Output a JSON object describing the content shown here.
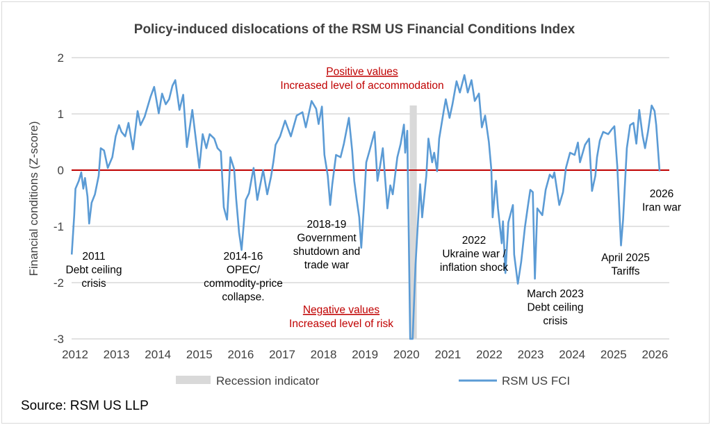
{
  "chart_data": {
    "type": "line",
    "title": "Policy-induced dislocations of the RSM US Financial Conditions Index",
    "xlabel": "",
    "ylabel": "Financial conditions (Z-score)",
    "xlim": [
      2012,
      2026
    ],
    "ylim": [
      -3,
      2
    ],
    "x_ticks": [
      "2012",
      "2013",
      "2014",
      "2015",
      "2016",
      "2017",
      "2018",
      "2019",
      "2020",
      "2021",
      "2022",
      "2023",
      "2024",
      "2025",
      "2026"
    ],
    "y_ticks": [
      "2",
      "1",
      "0",
      "-1",
      "-2",
      "-3"
    ],
    "grid": true,
    "legend_position": "bottom",
    "legend": [
      "Recession indicator",
      "RSM US FCI"
    ],
    "colors": {
      "fci": "#5b9bd5",
      "recession": "#d9d9d9",
      "zero_line": "#c00000",
      "accent": "#c00000"
    },
    "recession": {
      "name": "Recession indicator",
      "start": 2020.08,
      "end": 2020.25,
      "top": 1.15
    },
    "series": [
      {
        "name": "RSM US FCI",
        "x": [
          2011.92,
          2011.98,
          2012.01,
          2012.09,
          2012.15,
          2012.2,
          2012.24,
          2012.3,
          2012.34,
          2012.4,
          2012.48,
          2012.57,
          2012.62,
          2012.7,
          2012.79,
          2012.9,
          2012.98,
          2013.06,
          2013.12,
          2013.21,
          2013.29,
          2013.4,
          2013.51,
          2013.58,
          2013.68,
          2013.82,
          2013.91,
          2014.02,
          2014.1,
          2014.19,
          2014.27,
          2014.35,
          2014.42,
          2014.52,
          2014.61,
          2014.7,
          2014.83,
          2015.0,
          2015.08,
          2015.17,
          2015.25,
          2015.36,
          2015.44,
          2015.52,
          2015.59,
          2015.67,
          2015.75,
          2015.84,
          2015.89,
          2015.96,
          2016.02,
          2016.12,
          2016.2,
          2016.26,
          2016.31,
          2016.4,
          2016.54,
          2016.64,
          2016.73,
          2016.79,
          2016.84,
          2016.95,
          2017.07,
          2017.21,
          2017.35,
          2017.49,
          2017.57,
          2017.71,
          2017.82,
          2017.88,
          2017.96,
          2018.02,
          2018.1,
          2018.16,
          2018.21,
          2018.3,
          2018.41,
          2018.49,
          2018.61,
          2018.69,
          2018.74,
          2018.8,
          2018.86,
          2018.91,
          2018.97,
          2019.03,
          2019.11,
          2019.23,
          2019.3,
          2019.36,
          2019.43,
          2019.54,
          2019.61,
          2019.67,
          2019.78,
          2019.86,
          2019.94,
          2019.97,
          2020.02,
          2020.09,
          2020.15,
          2020.22,
          2020.33,
          2020.38,
          2020.48,
          2020.53,
          2020.62,
          2020.67,
          2020.74,
          2020.79,
          2020.9,
          2020.95,
          2021.04,
          2021.11,
          2021.21,
          2021.29,
          2021.4,
          2021.48,
          2021.57,
          2021.65,
          2021.75,
          2021.82,
          2021.9,
          2021.99,
          2022.05,
          2022.08,
          2022.16,
          2022.21,
          2022.3,
          2022.33,
          2022.39,
          2022.46,
          2022.57,
          2022.6,
          2022.69,
          2022.77,
          2022.86,
          2022.94,
          2022.99,
          2023.05,
          2023.1,
          2023.16,
          2023.28,
          2023.36,
          2023.46,
          2023.53,
          2023.57,
          2023.69,
          2023.78,
          2023.85,
          2023.95,
          2024.06,
          2024.14,
          2024.19,
          2024.31,
          2024.41,
          2024.48,
          2024.56,
          2024.6,
          2024.67,
          2024.75,
          2024.87,
          2024.95,
          2025.02,
          2025.09,
          2025.18,
          2025.23,
          2025.32,
          2025.4,
          2025.48,
          2025.55,
          2025.62,
          2025.7,
          2025.76,
          2025.83,
          2025.92,
          2025.99,
          2026.03,
          2026.11
        ],
        "values": [
          -1.5,
          -0.8,
          -0.33,
          -0.19,
          -0.04,
          -0.33,
          -0.14,
          -0.47,
          -0.95,
          -0.58,
          -0.43,
          -0.1,
          0.39,
          0.35,
          0.04,
          0.23,
          0.6,
          0.8,
          0.68,
          0.6,
          0.84,
          0.37,
          1.05,
          0.8,
          0.95,
          1.3,
          1.48,
          1.01,
          1.36,
          1.17,
          1.26,
          1.5,
          1.6,
          1.07,
          1.34,
          0.41,
          1.07,
          0.04,
          0.64,
          0.39,
          0.64,
          0.56,
          0.39,
          0.33,
          -0.66,
          -0.88,
          0.23,
          0.02,
          -0.51,
          -1.11,
          -1.42,
          -0.53,
          -0.41,
          -0.16,
          0.04,
          -0.53,
          0.0,
          -0.43,
          -0.12,
          0.16,
          0.45,
          0.6,
          0.88,
          0.6,
          0.97,
          1.03,
          0.76,
          1.23,
          1.09,
          0.82,
          1.13,
          0.27,
          -0.1,
          -0.62,
          -0.25,
          0.27,
          0.23,
          0.47,
          0.93,
          0.35,
          -0.19,
          -0.53,
          -0.84,
          -1.38,
          -0.68,
          0.14,
          0.35,
          0.68,
          -0.19,
          0.06,
          0.39,
          -0.68,
          -0.27,
          -0.43,
          0.23,
          0.47,
          0.81,
          0.31,
          0.7,
          -3.3,
          -3.3,
          -1.67,
          -0.25,
          -0.84,
          -0.1,
          0.56,
          0.14,
          0.31,
          -0.02,
          0.56,
          1.05,
          1.26,
          0.93,
          1.17,
          1.58,
          1.38,
          1.69,
          1.38,
          1.6,
          1.23,
          1.36,
          0.76,
          0.97,
          0.5,
          0.0,
          -0.84,
          -0.19,
          -0.68,
          -1.3,
          -0.91,
          -1.83,
          -0.93,
          -0.62,
          -1.5,
          -2.02,
          -1.63,
          -1.01,
          -0.6,
          -0.35,
          -0.39,
          -1.93,
          -0.68,
          -0.8,
          -0.35,
          -0.08,
          -0.14,
          -0.04,
          -0.62,
          -0.39,
          0.04,
          0.31,
          0.27,
          0.49,
          0.14,
          0.45,
          0.56,
          -0.37,
          -0.1,
          0.23,
          0.53,
          0.68,
          0.64,
          0.72,
          0.78,
          0.06,
          -1.34,
          -0.88,
          0.39,
          0.8,
          0.84,
          0.47,
          1.07,
          0.62,
          0.39,
          0.68,
          1.15,
          1.05,
          0.8,
          -0.02
        ]
      }
    ],
    "annotations": {
      "positive": {
        "title": "Positive values",
        "text": "Increased level of accommodation"
      },
      "negative": {
        "title": "Negative values",
        "text": "Increased level of risk"
      },
      "events": [
        {
          "lines": [
            "2011",
            "Debt ceiling",
            "crisis"
          ]
        },
        {
          "lines": [
            "2014-16",
            "OPEC/",
            "commodity-price",
            "collapse."
          ]
        },
        {
          "lines": [
            "2018-19",
            "Government",
            "shutdown and",
            "trade war"
          ]
        },
        {
          "lines": [
            "2022",
            "Ukraine war /",
            "inflation shock"
          ]
        },
        {
          "lines": [
            "March 2023",
            "Debt ceiling",
            "crisis"
          ]
        },
        {
          "lines": [
            "April 2025",
            "Tariffs"
          ]
        },
        {
          "lines": [
            "2026",
            "Iran war"
          ]
        }
      ]
    },
    "source": "Source: RSM US LLP"
  }
}
